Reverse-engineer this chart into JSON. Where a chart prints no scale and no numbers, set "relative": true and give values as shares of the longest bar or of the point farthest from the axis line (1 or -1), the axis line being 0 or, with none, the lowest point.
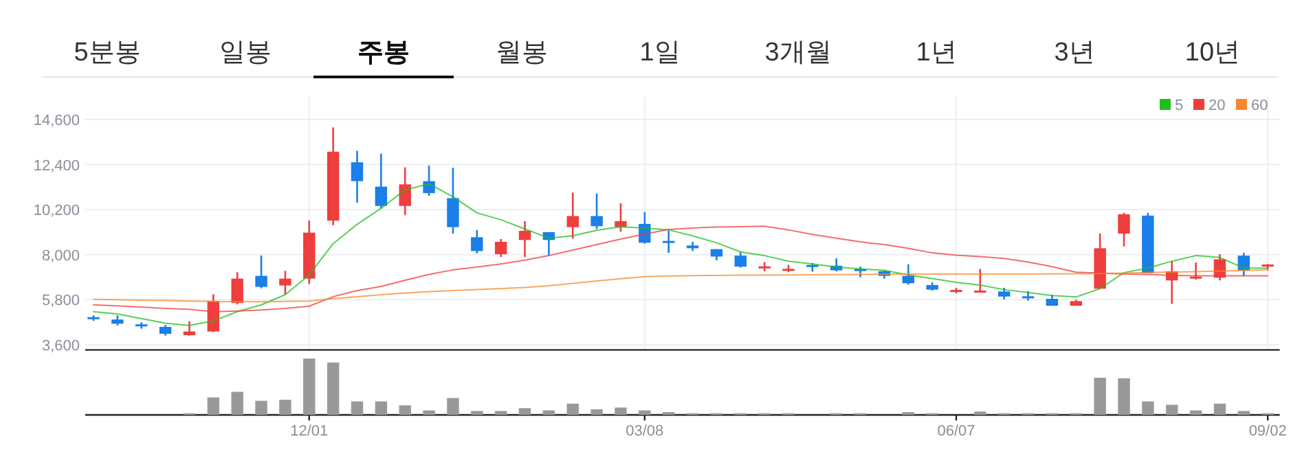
{
  "chart_data": [
    {
      "type": "candlestick",
      "annotations": [
        "5분봉",
        "일봉",
        "주봉",
        "월봉",
        "1일",
        "3개월",
        "1년",
        "3년",
        "10년"
      ],
      "categories": [
        null,
        null,
        null,
        null,
        null,
        null,
        null,
        null,
        null,
        null,
        null,
        null,
        null,
        null,
        null,
        null,
        null,
        null,
        null,
        null,
        null,
        null,
        null,
        null,
        null,
        null,
        null,
        null,
        null,
        null,
        null,
        null,
        null,
        null,
        null,
        null,
        null,
        null,
        null,
        null,
        null,
        null,
        null,
        null,
        null,
        null,
        null,
        null,
        null,
        null
      ],
      "ohlc": [
        [
          4950,
          5040,
          4770,
          4900
        ],
        [
          4834,
          5037,
          4543,
          4632
        ],
        [
          4600,
          4700,
          4385,
          4550
        ],
        [
          4475,
          4565,
          4048,
          4138
        ],
        [
          4071,
          4745,
          4050,
          4250
        ],
        [
          4250,
          6069,
          4220,
          5732
        ],
        [
          5642,
          7147,
          5575,
          6832
        ],
        [
          6967,
          7955,
          6361,
          6428
        ],
        [
          6496,
          7214,
          6069,
          6832
        ],
        [
          6832,
          9661,
          6563,
          9077
        ],
        [
          9661,
          14218,
          9437,
          13029
        ],
        [
          12512,
          13074,
          10537,
          11592
        ],
        [
          11322,
          12939,
          10267,
          10380
        ],
        [
          10380,
          12265,
          9930,
          11435
        ],
        [
          11592,
          12355,
          10873,
          11008
        ],
        [
          10761,
          12243,
          9032,
          9347
        ],
        [
          8853,
          9212,
          8067,
          8179
        ],
        [
          8022,
          8763,
          7887,
          8628
        ],
        [
          8718,
          9639,
          7887,
          9167
        ],
        [
          9100,
          9100,
          7955,
          8718
        ],
        [
          9347,
          11031,
          8786,
          9886
        ],
        [
          9886,
          10986,
          9257,
          9392
        ],
        [
          9347,
          10514,
          9122,
          9639
        ],
        [
          9504,
          10086,
          8538,
          8583
        ],
        [
          8673,
          9167,
          8089,
          8606
        ],
        [
          8449,
          8628,
          8179,
          8314
        ],
        [
          8269,
          8269,
          7730,
          7910
        ],
        [
          7955,
          8134,
          7371,
          7416
        ],
        [
          7410,
          7640,
          7192,
          7430
        ],
        [
          7290,
          7506,
          7147,
          7310
        ],
        [
          7500,
          7596,
          7170,
          7480
        ],
        [
          7461,
          7820,
          7192,
          7236
        ],
        [
          7300,
          7416,
          6900,
          7280
        ],
        [
          7192,
          7236,
          6832,
          6967
        ],
        [
          6967,
          7528,
          6541,
          6608
        ],
        [
          6518,
          6653,
          6249,
          6294
        ],
        [
          6260,
          6384,
          6114,
          6280
        ],
        [
          6181,
          7304,
          6181,
          6249
        ],
        [
          6204,
          6384,
          5822,
          5957
        ],
        [
          5970,
          6226,
          5755,
          5950
        ],
        [
          5845,
          6047,
          5508,
          5508
        ],
        [
          5508,
          5800,
          5508,
          5732
        ],
        [
          6339,
          9032,
          6339,
          8314
        ],
        [
          9032,
          10043,
          8404,
          9975
        ],
        [
          9908,
          10043,
          7102,
          7102
        ],
        [
          6743,
          7685,
          5597,
          7192
        ],
        [
          6900,
          7618,
          6788,
          6930
        ],
        [
          6877,
          8022,
          6743,
          7775
        ],
        [
          7955,
          8089,
          6967,
          7236
        ],
        [
          7480,
          7551,
          7236,
          7520
        ]
      ],
      "colors": [
        "#1a7fe8",
        "#1a7fe8",
        "#1a7fe8",
        "#1a7fe8",
        "#ef3e3e",
        "#ef3e3e",
        "#ef3e3e",
        "#1a7fe8",
        "#ef3e3e",
        "#ef3e3e",
        "#ef3e3e",
        "#1a7fe8",
        "#1a7fe8",
        "#ef3e3e",
        "#1a7fe8",
        "#1a7fe8",
        "#1a7fe8",
        "#ef3e3e",
        "#ef3e3e",
        "#1a7fe8",
        "#ef3e3e",
        "#1a7fe8",
        "#ef3e3e",
        "#1a7fe8",
        "#1a7fe8",
        "#1a7fe8",
        "#1a7fe8",
        "#1a7fe8",
        "#ef3e3e",
        "#ef3e3e",
        "#1a7fe8",
        "#1a7fe8",
        "#1a7fe8",
        "#1a7fe8",
        "#1a7fe8",
        "#1a7fe8",
        "#ef3e3e",
        "#ef3e3e",
        "#1a7fe8",
        "#1a7fe8",
        "#1a7fe8",
        "#ef3e3e",
        "#ef3e3e",
        "#ef3e3e",
        "#1a7fe8",
        "#ef3e3e",
        "#ef3e3e",
        "#ef3e3e",
        "#1a7fe8",
        "#ef3e3e"
      ],
      "series": [
        {
          "name": "5",
          "type": "line",
          "color": "#1fbf1f",
          "values": [
            5216,
            5104,
            4879,
            4655,
            4543,
            4767,
            5216,
            5553,
            6047,
            7012,
            8538,
            9482,
            10267,
            11165,
            11457,
            10829,
            10043,
            9706,
            9257,
            8808,
            8920,
            9190,
            9369,
            9302,
            9212,
            8920,
            8583,
            8134,
            7955,
            7685,
            7551,
            7394,
            7304,
            7236,
            7012,
            6832,
            6653,
            6518,
            6294,
            6159,
            6002,
            5935,
            6339,
            7124,
            7349,
            7685,
            7955,
            7865,
            7349,
            7349
          ]
        },
        {
          "name": "20",
          "type": "line",
          "color": "#f03c3c",
          "values": [
            5553,
            5500,
            5441,
            5380,
            5330,
            5216,
            5250,
            5300,
            5374,
            5486,
            5950,
            6250,
            6450,
            6750,
            7035,
            7259,
            7394,
            7551,
            7730,
            7955,
            8224,
            8493,
            8763,
            9010,
            9234,
            9302,
            9347,
            9369,
            9392,
            9212,
            8987,
            8808,
            8628,
            8493,
            8314,
            8089,
            7977,
            7910,
            7820,
            7640,
            7416,
            7147,
            7102,
            7057,
            7035,
            6990,
            6967,
            6967,
            6967,
            6967
          ]
        },
        {
          "name": "60",
          "type": "line",
          "color": "#f5882a",
          "values": [
            5822,
            5800,
            5780,
            5760,
            5740,
            5720,
            5700,
            5700,
            5720,
            5740,
            5850,
            5950,
            6050,
            6130,
            6200,
            6250,
            6300,
            6350,
            6400,
            6480,
            6600,
            6720,
            6830,
            6930,
            6960,
            6980,
            6990,
            7000,
            7000,
            7010,
            7020,
            7030,
            7040,
            7050,
            7050,
            7050,
            7050,
            7050,
            7050,
            7050,
            7060,
            7070,
            7080,
            7100,
            7130,
            7150,
            7170,
            7200,
            7230,
            7260
          ]
        }
      ],
      "ylim": [
        3350,
        15700
      ],
      "yticks": [
        {
          "value": 3600,
          "label": "3,600"
        },
        {
          "value": 5800,
          "label": "5,800"
        },
        {
          "value": 8000,
          "label": "8,000"
        },
        {
          "value": 10200,
          "label": "10,200"
        },
        {
          "value": 12400,
          "label": "12,400"
        },
        {
          "value": 14600,
          "label": "14,600"
        }
      ],
      "grid": true,
      "legend": "top right",
      "tick_labels": "y"
    },
    {
      "type": "bar",
      "relative": true,
      "color": "#999999",
      "categories": [
        null,
        null,
        null,
        null,
        null,
        null,
        null,
        null,
        null,
        "12/01",
        null,
        null,
        null,
        null,
        null,
        null,
        null,
        null,
        null,
        null,
        null,
        null,
        null,
        "03/08",
        null,
        null,
        null,
        null,
        null,
        null,
        null,
        null,
        null,
        null,
        null,
        null,
        "06/07",
        null,
        null,
        null,
        null,
        null,
        null,
        null,
        null,
        null,
        null,
        null,
        null,
        "09/02"
      ],
      "values": [
        0,
        0,
        0,
        0,
        0.03,
        0.31,
        0.41,
        0.25,
        0.27,
        1,
        0.93,
        0.24,
        0.24,
        0.17,
        0.08,
        0.3,
        0.07,
        0.07,
        0.12,
        0.08,
        0.2,
        0.1,
        0.13,
        0.08,
        0.05,
        0.03,
        0.03,
        0.03,
        0.03,
        0.03,
        0,
        0.03,
        0.03,
        0,
        0.05,
        0.03,
        0,
        0.06,
        0.03,
        0.03,
        0.03,
        0.03,
        0.66,
        0.65,
        0.24,
        0.18,
        0.08,
        0.2,
        0.07,
        0.03
      ]
    }
  ]
}
